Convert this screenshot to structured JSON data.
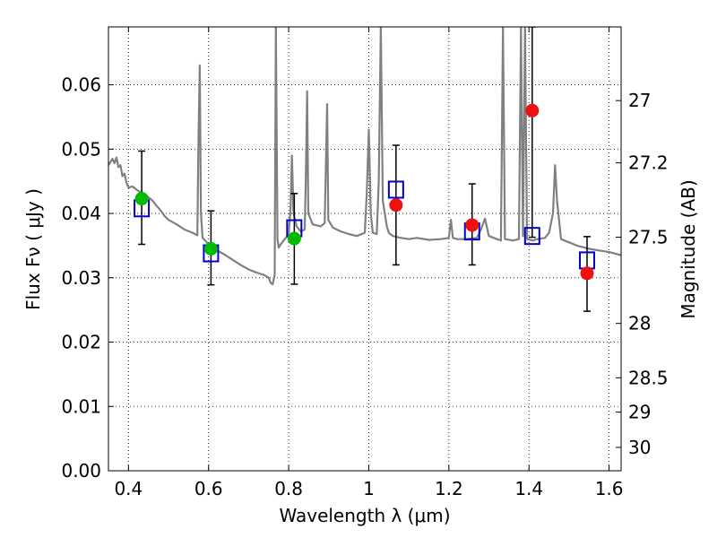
{
  "chart_data": {
    "type": "scatter",
    "xlabel": "Wavelength  λ (μm)",
    "ylabel_left": "Flux  Fν  ( μJy )",
    "ylabel_right": "Magnitude (AB)",
    "xlim": [
      0.35,
      1.63
    ],
    "ylim": [
      0.0,
      0.069
    ],
    "grid": true,
    "x_ticks": [
      0.4,
      0.6,
      0.8,
      1.0,
      1.2,
      1.4,
      1.6
    ],
    "x_tick_labels": [
      "0.4",
      "0.6",
      "0.8",
      "1",
      "1.2",
      "1.4",
      "1.6"
    ],
    "y_ticks": [
      0.0,
      0.01,
      0.02,
      0.03,
      0.04,
      0.05,
      0.06
    ],
    "y_tick_labels": [
      "0.00",
      "0.01",
      "0.02",
      "0.03",
      "0.04",
      "0.05",
      "0.06"
    ],
    "right_ticks": [
      {
        "label": "27",
        "mag": 27.0
      },
      {
        "label": "27.2",
        "mag": 27.2
      },
      {
        "label": "27.5",
        "mag": 27.5
      },
      {
        "label": "28",
        "mag": 28.0
      },
      {
        "label": "28.5",
        "mag": 28.5
      },
      {
        "label": "29",
        "mag": 29.0
      },
      {
        "label": "30",
        "mag": 30.0
      }
    ],
    "colors": {
      "model": "#808080",
      "model_points": "#0000cc",
      "errorbar": "#000000",
      "measured_green": "#00bb00",
      "measured_red": "#ee1111"
    },
    "model_spectrum": [
      [
        0.35,
        0.0475
      ],
      [
        0.36,
        0.0485
      ],
      [
        0.365,
        0.0478
      ],
      [
        0.37,
        0.0487
      ],
      [
        0.375,
        0.0472
      ],
      [
        0.38,
        0.0475
      ],
      [
        0.385,
        0.0458
      ],
      [
        0.39,
        0.0462
      ],
      [
        0.395,
        0.0448
      ],
      [
        0.4,
        0.044
      ],
      [
        0.41,
        0.0442
      ],
      [
        0.42,
        0.0437
      ],
      [
        0.43,
        0.0433
      ],
      [
        0.44,
        0.043
      ],
      [
        0.45,
        0.0425
      ],
      [
        0.46,
        0.042
      ],
      [
        0.47,
        0.0412
      ],
      [
        0.48,
        0.0405
      ],
      [
        0.49,
        0.0396
      ],
      [
        0.5,
        0.039
      ],
      [
        0.52,
        0.0383
      ],
      [
        0.54,
        0.0375
      ],
      [
        0.56,
        0.037
      ],
      [
        0.572,
        0.0366
      ],
      [
        0.575,
        0.052
      ],
      [
        0.578,
        0.063
      ],
      [
        0.581,
        0.04
      ],
      [
        0.585,
        0.0362
      ],
      [
        0.6,
        0.0352
      ],
      [
        0.62,
        0.0343
      ],
      [
        0.64,
        0.0336
      ],
      [
        0.66,
        0.0328
      ],
      [
        0.68,
        0.032
      ],
      [
        0.7,
        0.0313
      ],
      [
        0.72,
        0.0308
      ],
      [
        0.74,
        0.0304
      ],
      [
        0.75,
        0.03
      ],
      [
        0.755,
        0.0292
      ],
      [
        0.76,
        0.029
      ],
      [
        0.765,
        0.0305
      ],
      [
        0.768,
        0.069
      ],
      [
        0.772,
        0.036
      ],
      [
        0.775,
        0.0347
      ],
      [
        0.78,
        0.0352
      ],
      [
        0.79,
        0.036
      ],
      [
        0.8,
        0.0367
      ],
      [
        0.805,
        0.041
      ],
      [
        0.808,
        0.049
      ],
      [
        0.812,
        0.04
      ],
      [
        0.82,
        0.038
      ],
      [
        0.83,
        0.0372
      ],
      [
        0.84,
        0.0375
      ],
      [
        0.843,
        0.046
      ],
      [
        0.846,
        0.059
      ],
      [
        0.849,
        0.04
      ],
      [
        0.86,
        0.0383
      ],
      [
        0.88,
        0.038
      ],
      [
        0.89,
        0.0385
      ],
      [
        0.893,
        0.048
      ],
      [
        0.896,
        0.057
      ],
      [
        0.899,
        0.039
      ],
      [
        0.91,
        0.0378
      ],
      [
        0.93,
        0.0372
      ],
      [
        0.95,
        0.0368
      ],
      [
        0.97,
        0.0365
      ],
      [
        0.99,
        0.037
      ],
      [
        0.995,
        0.043
      ],
      [
        1.0,
        0.053
      ],
      [
        1.005,
        0.04
      ],
      [
        1.01,
        0.037
      ],
      [
        1.02,
        0.0368
      ],
      [
        1.025,
        0.045
      ],
      [
        1.03,
        0.069
      ],
      [
        1.035,
        0.042
      ],
      [
        1.045,
        0.038
      ],
      [
        1.05,
        0.037
      ],
      [
        1.06,
        0.0365
      ],
      [
        1.08,
        0.0362
      ],
      [
        1.1,
        0.036
      ],
      [
        1.12,
        0.0362
      ],
      [
        1.15,
        0.0359
      ],
      [
        1.18,
        0.036
      ],
      [
        1.2,
        0.0362
      ],
      [
        1.205,
        0.039
      ],
      [
        1.21,
        0.0362
      ],
      [
        1.22,
        0.036
      ],
      [
        1.24,
        0.036
      ],
      [
        1.27,
        0.0362
      ],
      [
        1.28,
        0.0375
      ],
      [
        1.29,
        0.0392
      ],
      [
        1.3,
        0.0365
      ],
      [
        1.32,
        0.036
      ],
      [
        1.33,
        0.0358
      ],
      [
        1.335,
        0.069
      ],
      [
        1.34,
        0.036
      ],
      [
        1.36,
        0.0358
      ],
      [
        1.375,
        0.036
      ],
      [
        1.38,
        0.069
      ],
      [
        1.385,
        0.0365
      ],
      [
        1.39,
        0.069
      ],
      [
        1.395,
        0.036
      ],
      [
        1.41,
        0.0358
      ],
      [
        1.42,
        0.036
      ],
      [
        1.44,
        0.0362
      ],
      [
        1.45,
        0.037
      ],
      [
        1.46,
        0.04
      ],
      [
        1.465,
        0.0475
      ],
      [
        1.47,
        0.042
      ],
      [
        1.48,
        0.036
      ],
      [
        1.5,
        0.0355
      ],
      [
        1.52,
        0.035
      ],
      [
        1.55,
        0.0345
      ],
      [
        1.58,
        0.0342
      ],
      [
        1.6,
        0.034
      ],
      [
        1.63,
        0.0335
      ]
    ],
    "model_band_points": [
      {
        "x": 0.433,
        "y": 0.0408
      },
      {
        "x": 0.606,
        "y": 0.0338
      },
      {
        "x": 0.814,
        "y": 0.0377
      },
      {
        "x": 1.068,
        "y": 0.0437
      },
      {
        "x": 1.258,
        "y": 0.0372
      },
      {
        "x": 1.408,
        "y": 0.0365
      },
      {
        "x": 1.545,
        "y": 0.0327
      }
    ],
    "measured": [
      {
        "x": 0.433,
        "y": 0.0423,
        "err_low": 0.0352,
        "err_high": 0.0497,
        "color": "green"
      },
      {
        "x": 0.606,
        "y": 0.0345,
        "err_low": 0.0289,
        "err_high": 0.0404,
        "color": "green"
      },
      {
        "x": 0.814,
        "y": 0.0361,
        "err_low": 0.029,
        "err_high": 0.0431,
        "color": "green"
      },
      {
        "x": 1.068,
        "y": 0.0413,
        "err_low": 0.032,
        "err_high": 0.0506,
        "color": "red"
      },
      {
        "x": 1.258,
        "y": 0.0382,
        "err_low": 0.032,
        "err_high": 0.0446,
        "color": "red"
      },
      {
        "x": 1.408,
        "y": 0.056,
        "err_low": 0.0363,
        "err_high": 0.069,
        "color": "red"
      },
      {
        "x": 1.545,
        "y": 0.0307,
        "err_low": 0.0248,
        "err_high": 0.0364,
        "color": "red"
      }
    ]
  }
}
